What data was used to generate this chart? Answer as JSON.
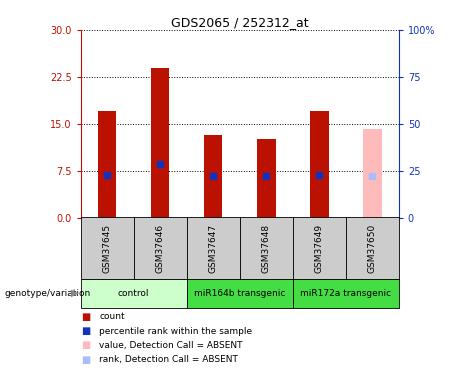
{
  "title": "GDS2065 / 252312_at",
  "samples": [
    "GSM37645",
    "GSM37646",
    "GSM37647",
    "GSM37648",
    "GSM37649",
    "GSM37650"
  ],
  "count_values": [
    17.0,
    24.0,
    13.2,
    12.5,
    17.0,
    14.2
  ],
  "rank_values": [
    22.5,
    28.5,
    22.0,
    22.0,
    22.5,
    22.0
  ],
  "absent_flags": [
    false,
    false,
    false,
    false,
    false,
    true
  ],
  "bar_width": 0.35,
  "ylim_left": [
    0,
    30
  ],
  "ylim_right": [
    0,
    100
  ],
  "yticks_left": [
    0,
    7.5,
    15,
    22.5,
    30
  ],
  "yticks_right": [
    0,
    25,
    50,
    75,
    100
  ],
  "ytick_labels_right": [
    "0",
    "25",
    "50",
    "75",
    "100%"
  ],
  "groups": [
    {
      "label": "control",
      "start": 0,
      "end": 2,
      "color": "#ccffcc"
    },
    {
      "label": "miR164b transgenic",
      "start": 2,
      "end": 4,
      "color": "#44dd44"
    },
    {
      "label": "miR172a transgenic",
      "start": 4,
      "end": 6,
      "color": "#44dd44"
    }
  ],
  "group_label": "genotype/variation",
  "bar_color_present": "#bb1100",
  "bar_color_absent": "#ffbbbb",
  "rank_color_present": "#1133bb",
  "rank_color_absent": "#aabbff",
  "plot_bg": "#ffffff",
  "sample_bg": "#cccccc",
  "legend_items": [
    {
      "color": "#bb1100",
      "label": "count"
    },
    {
      "color": "#1133bb",
      "label": "percentile rank within the sample"
    },
    {
      "color": "#ffbbbb",
      "label": "value, Detection Call = ABSENT"
    },
    {
      "color": "#aabbff",
      "label": "rank, Detection Call = ABSENT"
    }
  ]
}
